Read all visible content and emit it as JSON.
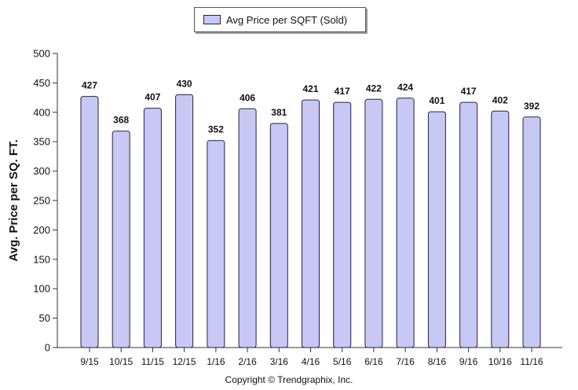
{
  "legend": {
    "label": "Avg Price per SQFT (Sold)"
  },
  "chart_data": {
    "type": "bar",
    "categories": [
      "9/15",
      "10/15",
      "11/15",
      "12/15",
      "1/16",
      "2/16",
      "3/16",
      "4/16",
      "5/16",
      "6/16",
      "7/16",
      "8/16",
      "9/16",
      "10/16",
      "11/16"
    ],
    "series": [
      {
        "name": "Avg Price per SQFT (Sold)",
        "values": [
          427,
          368,
          407,
          430,
          352,
          406,
          381,
          421,
          417,
          422,
          424,
          401,
          417,
          402,
          392
        ]
      }
    ],
    "ylabel": "Avg. Price per SQ. FT.",
    "xlabel": "",
    "ylim": [
      0,
      500
    ],
    "yticks": [
      0,
      50,
      100,
      150,
      200,
      250,
      300,
      350,
      400,
      450,
      500
    ],
    "data_labels": true,
    "grid": false,
    "legend_position": "top-center",
    "colors": {
      "bar_fill": "#c8c8f4",
      "bar_stroke": "#222244",
      "axis": "#333333"
    }
  },
  "footer": {
    "copyright": "Copyright © Trendgraphix, Inc."
  }
}
